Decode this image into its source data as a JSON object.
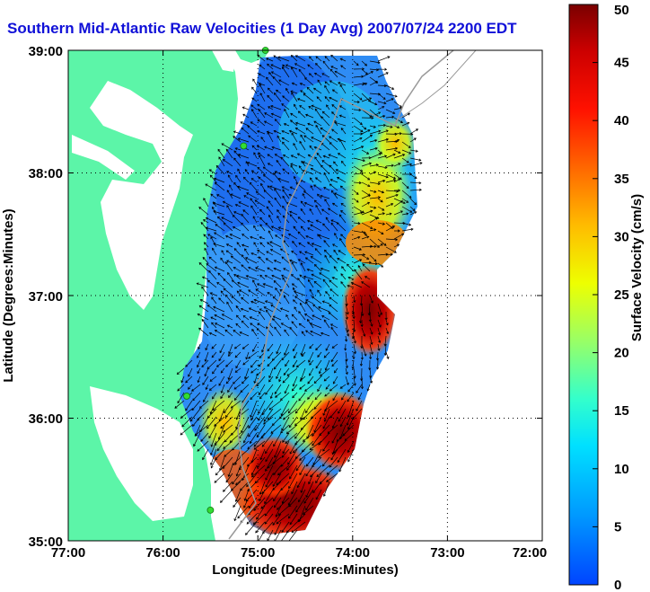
{
  "title": "Southern Mid-Atlantic Raw Velocities (1 Day Avg) 2007/07/24 2200 EDT",
  "xlabel": "Longitude (Degrees:Minutes)",
  "ylabel": "Latitude (Degrees:Minutes)",
  "x_ticks": [
    "77:00",
    "76:00",
    "75:00",
    "74:00",
    "73:00",
    "72:00"
  ],
  "y_ticks": [
    "39:00",
    "38:00",
    "37:00",
    "36:00",
    "35:00"
  ],
  "colorbar": {
    "label": "Surface Velocity (cm/s)",
    "ticks": [
      "50",
      "45",
      "40",
      "35",
      "30",
      "25",
      "20",
      "15",
      "10",
      "5",
      "0"
    ]
  },
  "colors": {
    "land": "#5cf5a8",
    "water": "#ffffff",
    "title": "#1010d8",
    "station": "#33dd33",
    "bathymetry": "#999999"
  },
  "chart_data": {
    "type": "heatmap",
    "subtype": "surface-current-vector-map",
    "title": "Southern Mid-Atlantic Raw Velocities (1 Day Avg) 2007/07/24 2200 EDT",
    "xlabel": "Longitude (Degrees:Minutes)",
    "ylabel": "Latitude (Degrees:Minutes)",
    "xlim": [
      -77,
      -72
    ],
    "ylim": [
      35,
      39
    ],
    "color_range": [
      0,
      50
    ],
    "color_unit": "cm/s",
    "grid": true,
    "legend": "colorbar-right",
    "stations": [
      {
        "lon": -74.92,
        "lat": 39.0
      },
      {
        "lon": -75.15,
        "lat": 38.22
      },
      {
        "lon": -75.75,
        "lat": 36.18
      },
      {
        "lon": -75.5,
        "lat": 35.25
      }
    ]
  }
}
